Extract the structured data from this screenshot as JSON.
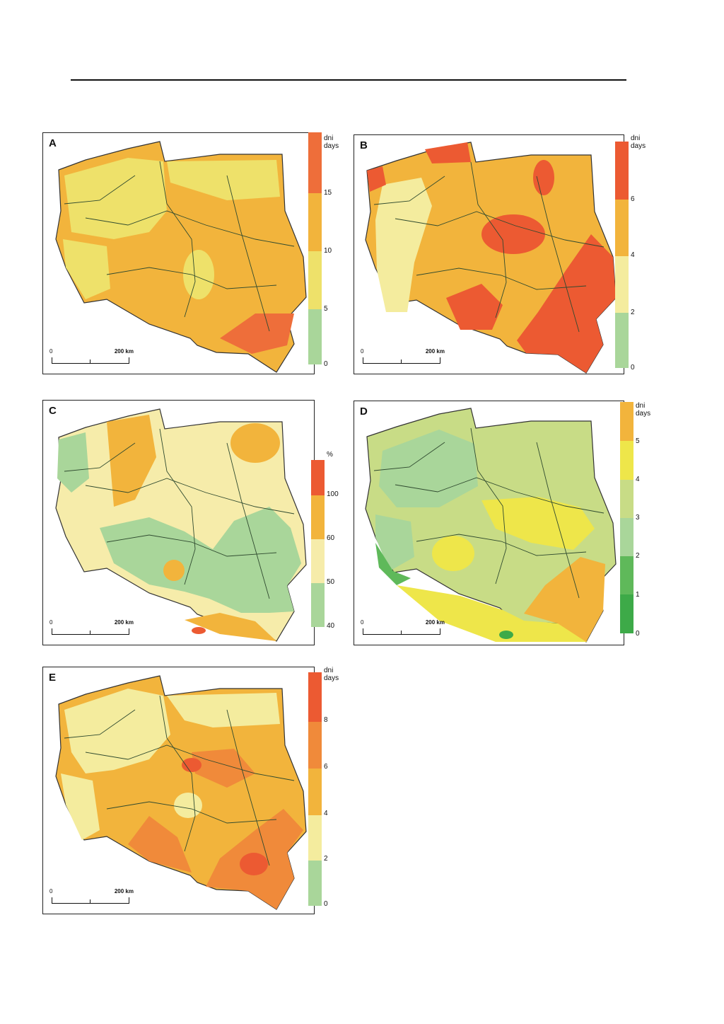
{
  "panels": [
    {
      "id": "A",
      "label": "A",
      "unit_line1": "dni",
      "unit_line2": "days",
      "ticks": [
        "15",
        "10",
        "5",
        "0"
      ],
      "colors": [
        "#ee6e3a",
        "#f2b43c",
        "#eee16a",
        "#a9d69a"
      ],
      "scale_zero": "0",
      "scale_km": "200 km"
    },
    {
      "id": "B",
      "label": "B",
      "unit_line1": "dni",
      "unit_line2": "days",
      "ticks": [
        "6",
        "4",
        "2",
        "0"
      ],
      "colors": [
        "#ec5a32",
        "#f2b43c",
        "#f4ec9e",
        "#a9d69a"
      ],
      "scale_zero": "0",
      "scale_km": "200 km"
    },
    {
      "id": "C",
      "label": "C",
      "unit_line1": "%",
      "unit_line2": "",
      "ticks": [
        "100",
        "60",
        "50",
        "40"
      ],
      "colors": [
        "#ec5a32",
        "#f2b43c",
        "#f6ecaa",
        "#a9d69a",
        "#a9d69a"
      ],
      "scale_zero": "0",
      "scale_km": "200 km"
    },
    {
      "id": "D",
      "label": "D",
      "unit_line1": "dni",
      "unit_line2": "days",
      "ticks": [
        "5",
        "4",
        "3",
        "2",
        "1",
        "0"
      ],
      "colors": [
        "#f2b43c",
        "#eee64a",
        "#c8dc86",
        "#a9d69a",
        "#5fb95a",
        "#3daa48"
      ],
      "scale_zero": "0",
      "scale_km": "200 km"
    },
    {
      "id": "E",
      "label": "E",
      "unit_line1": "dni",
      "unit_line2": "days",
      "ticks": [
        "8",
        "6",
        "4",
        "2",
        "0"
      ],
      "colors": [
        "#ec5a32",
        "#f08a3a",
        "#f2b43c",
        "#f4ec9e",
        "#a9d69a"
      ],
      "scale_zero": "0",
      "scale_km": "200 km"
    }
  ]
}
